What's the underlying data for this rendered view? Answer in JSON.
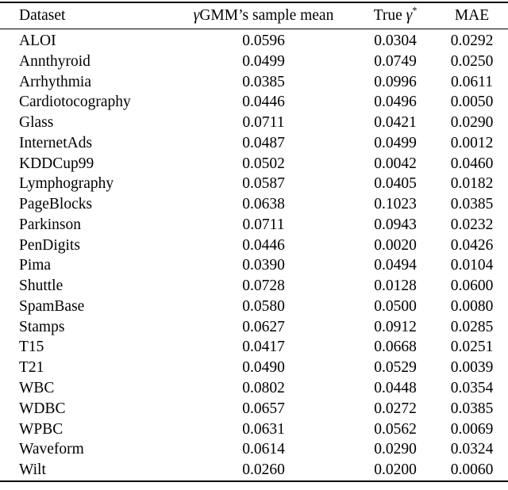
{
  "colors": {
    "text": "#000000",
    "background": "#ffffff",
    "rule": "#000000"
  },
  "table": {
    "header": {
      "dataset": "Dataset",
      "gamma": "γ",
      "sample_mean_rest": "GMM’s sample mean",
      "true_prefix": "True ",
      "star": "*",
      "mae": "MAE"
    },
    "rows": [
      {
        "dataset": "ALOI",
        "sample_mean": "0.0596",
        "true_gamma": "0.0304",
        "mae": "0.0292"
      },
      {
        "dataset": "Annthyroid",
        "sample_mean": "0.0499",
        "true_gamma": "0.0749",
        "mae": "0.0250"
      },
      {
        "dataset": "Arrhythmia",
        "sample_mean": "0.0385",
        "true_gamma": "0.0996",
        "mae": "0.0611"
      },
      {
        "dataset": "Cardiotocography",
        "sample_mean": "0.0446",
        "true_gamma": "0.0496",
        "mae": "0.0050"
      },
      {
        "dataset": "Glass",
        "sample_mean": "0.0711",
        "true_gamma": "0.0421",
        "mae": "0.0290"
      },
      {
        "dataset": "InternetAds",
        "sample_mean": "0.0487",
        "true_gamma": "0.0499",
        "mae": "0.0012"
      },
      {
        "dataset": "KDDCup99",
        "sample_mean": "0.0502",
        "true_gamma": "0.0042",
        "mae": "0.0460"
      },
      {
        "dataset": "Lymphography",
        "sample_mean": "0.0587",
        "true_gamma": "0.0405",
        "mae": "0.0182"
      },
      {
        "dataset": "PageBlocks",
        "sample_mean": "0.0638",
        "true_gamma": "0.1023",
        "mae": "0.0385"
      },
      {
        "dataset": "Parkinson",
        "sample_mean": "0.0711",
        "true_gamma": "0.0943",
        "mae": "0.0232"
      },
      {
        "dataset": "PenDigits",
        "sample_mean": "0.0446",
        "true_gamma": "0.0020",
        "mae": "0.0426"
      },
      {
        "dataset": "Pima",
        "sample_mean": "0.0390",
        "true_gamma": "0.0494",
        "mae": "0.0104"
      },
      {
        "dataset": "Shuttle",
        "sample_mean": "0.0728",
        "true_gamma": "0.0128",
        "mae": "0.0600"
      },
      {
        "dataset": "SpamBase",
        "sample_mean": "0.0580",
        "true_gamma": "0.0500",
        "mae": "0.0080"
      },
      {
        "dataset": "Stamps",
        "sample_mean": "0.0627",
        "true_gamma": "0.0912",
        "mae": "0.0285"
      },
      {
        "dataset": "T15",
        "sample_mean": "0.0417",
        "true_gamma": "0.0668",
        "mae": "0.0251"
      },
      {
        "dataset": "T21",
        "sample_mean": "0.0490",
        "true_gamma": "0.0529",
        "mae": "0.0039"
      },
      {
        "dataset": "WBC",
        "sample_mean": "0.0802",
        "true_gamma": "0.0448",
        "mae": "0.0354"
      },
      {
        "dataset": "WDBC",
        "sample_mean": "0.0657",
        "true_gamma": "0.0272",
        "mae": "0.0385"
      },
      {
        "dataset": "WPBC",
        "sample_mean": "0.0631",
        "true_gamma": "0.0562",
        "mae": "0.0069"
      },
      {
        "dataset": "Waveform",
        "sample_mean": "0.0614",
        "true_gamma": "0.0290",
        "mae": "0.0324"
      },
      {
        "dataset": "Wilt",
        "sample_mean": "0.0260",
        "true_gamma": "0.0200",
        "mae": "0.0060"
      }
    ]
  }
}
